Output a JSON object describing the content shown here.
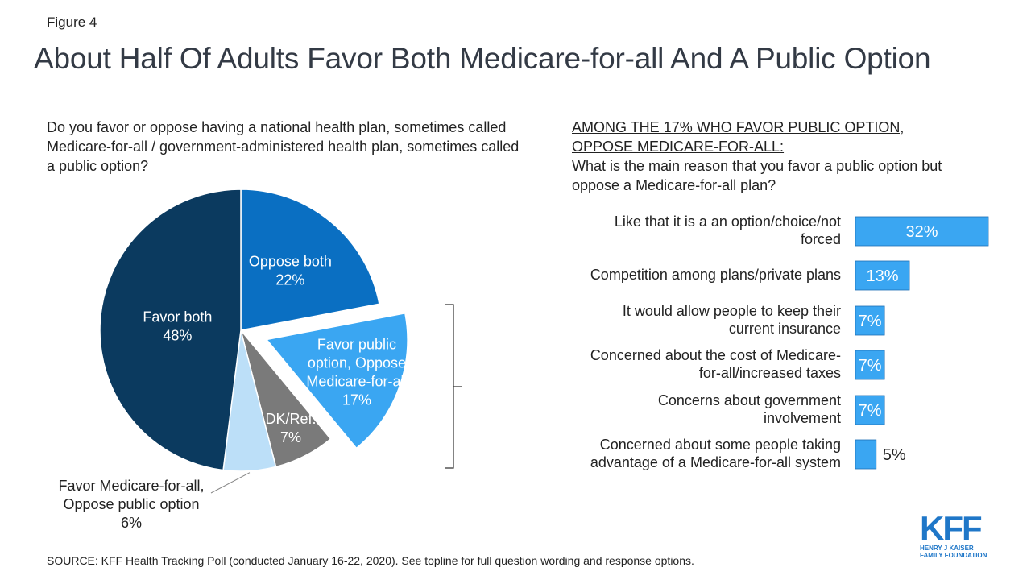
{
  "figure_label": "Figure 4",
  "title": "About Half Of Adults Favor Both Medicare-for-all And A Public Option",
  "question": "Do you favor or oppose having a national health plan, sometimes called Medicare-for-all / government-administered health plan, sometimes called a public option?",
  "sub_heading_line1": "AMONG THE 17% WHO FAVOR PUBLIC OPTION,",
  "sub_heading_line2": "OPPOSE MEDICARE-FOR-ALL:",
  "sub_question": "What is the main reason that you favor a public option but oppose a Medicare-for-all plan?",
  "source": "SOURCE: KFF Health Tracking Poll (conducted January 16-22, 2020). See topline for full question wording and response options.",
  "logo": {
    "letters": "KFF",
    "line1": "HENRY J KAISER",
    "line2": "FAMILY FOUNDATION"
  },
  "colors": {
    "favor_both": "#0b3a5f",
    "oppose_both": "#0a6fc2",
    "public_option": "#3aa6f2",
    "dk_ref": "#7a7a7a",
    "mfa_only": "#bcdff8",
    "bar": "#3aa6f2"
  },
  "chart_data": [
    {
      "type": "pie",
      "title": "",
      "slices": [
        {
          "name": "Oppose both",
          "label": "22%",
          "value": 22
        },
        {
          "name": "Favor public option, Oppose Medicare-for-all",
          "label": "17%",
          "value": 17,
          "exploded": true
        },
        {
          "name": "DK/Ref.",
          "label": "7%",
          "value": 7
        },
        {
          "name": "Favor Medicare-for-all, Oppose public option",
          "label": "6%",
          "value": 6
        },
        {
          "name": "Favor both",
          "label": "48%",
          "value": 48
        }
      ]
    },
    {
      "type": "bar",
      "orientation": "horizontal",
      "title": "What is the main reason that you favor a public option but oppose a Medicare-for-all plan?",
      "categories": [
        "Like that it is a an option/choice/not forced",
        "Competition among plans/private plans",
        "It would allow people to keep their current insurance",
        "Concerned about the cost of Medicare-for-all/increased taxes",
        "Concerns about government involvement",
        "Concerned about some people taking advantage of a Medicare-for-all system"
      ],
      "values": [
        32,
        13,
        7,
        7,
        7,
        5
      ],
      "value_labels": [
        "32%",
        "13%",
        "7%",
        "7%",
        "7%",
        "5%"
      ]
    }
  ]
}
